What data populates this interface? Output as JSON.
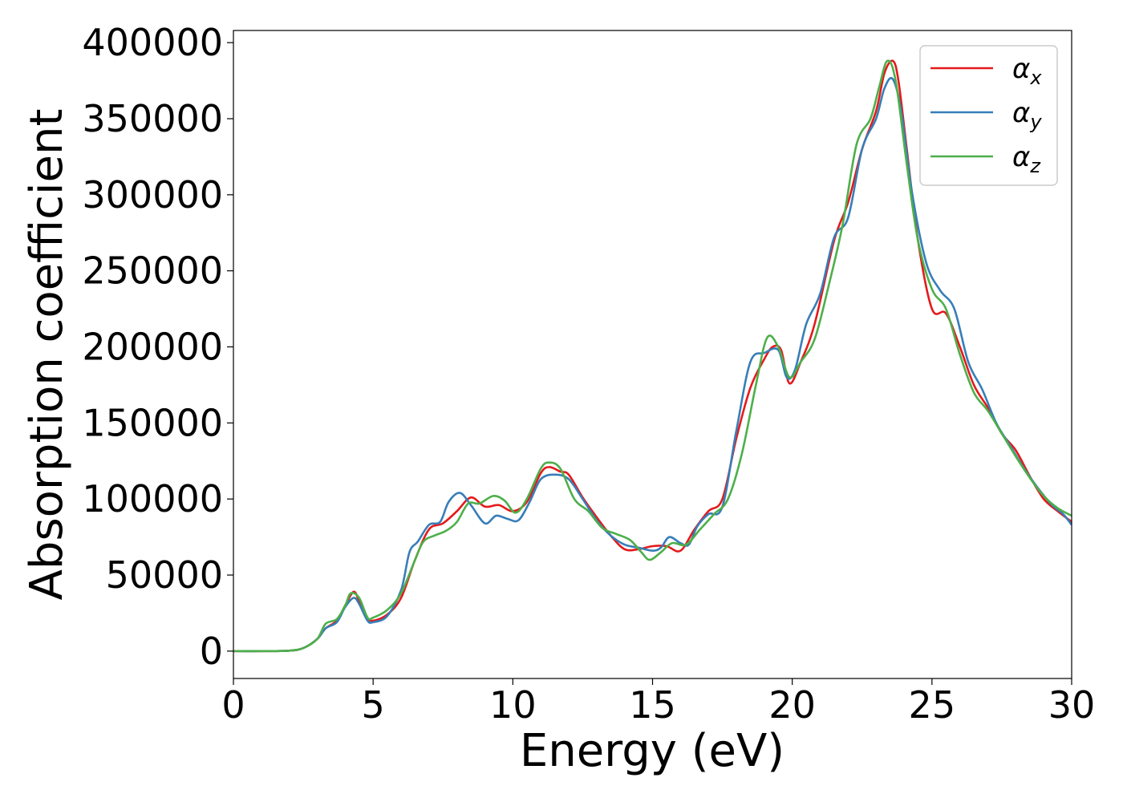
{
  "chart_data": {
    "type": "line",
    "xlabel": "Energy (eV)",
    "ylabel": "Absorption coefficient",
    "xlim": [
      0,
      30
    ],
    "ylim": [
      -18000,
      408000
    ],
    "xticks": [
      "0",
      "5",
      "10",
      "15",
      "20",
      "25",
      "30"
    ],
    "yticks": [
      "0",
      "50000",
      "100000",
      "150000",
      "200000",
      "250000",
      "300000",
      "350000",
      "400000"
    ],
    "grid": false,
    "legend_position": "top-right",
    "series": [
      {
        "name": "α",
        "subscript": "x",
        "color": "#e41a1c",
        "points": [
          [
            0,
            0
          ],
          [
            1,
            0
          ],
          [
            2,
            300
          ],
          [
            2.5,
            2000
          ],
          [
            3,
            8000
          ],
          [
            3.3,
            15000
          ],
          [
            3.7,
            20000
          ],
          [
            4.0,
            30000
          ],
          [
            4.3,
            39000
          ],
          [
            4.5,
            33000
          ],
          [
            4.8,
            22000
          ],
          [
            5.0,
            20000
          ],
          [
            5.5,
            24000
          ],
          [
            6.0,
            35000
          ],
          [
            6.5,
            60000
          ],
          [
            7.0,
            80000
          ],
          [
            7.5,
            84000
          ],
          [
            8.0,
            92000
          ],
          [
            8.5,
            101000
          ],
          [
            9.0,
            95000
          ],
          [
            9.5,
            96000
          ],
          [
            10.0,
            92000
          ],
          [
            10.5,
            98000
          ],
          [
            11.0,
            117000
          ],
          [
            11.3,
            121000
          ],
          [
            11.7,
            118000
          ],
          [
            12.0,
            116000
          ],
          [
            12.5,
            101000
          ],
          [
            13.0,
            88000
          ],
          [
            13.5,
            76000
          ],
          [
            14.0,
            67000
          ],
          [
            14.5,
            67000
          ],
          [
            15.0,
            69000
          ],
          [
            15.5,
            69000
          ],
          [
            16.0,
            66000
          ],
          [
            16.5,
            80000
          ],
          [
            17.0,
            92000
          ],
          [
            17.5,
            100000
          ],
          [
            18.0,
            140000
          ],
          [
            18.5,
            173000
          ],
          [
            19.0,
            192000
          ],
          [
            19.3,
            200000
          ],
          [
            19.6,
            198000
          ],
          [
            19.9,
            176000
          ],
          [
            20.3,
            190000
          ],
          [
            20.8,
            215000
          ],
          [
            21.5,
            270000
          ],
          [
            22.0,
            295000
          ],
          [
            22.5,
            330000
          ],
          [
            23.0,
            355000
          ],
          [
            23.3,
            380000
          ],
          [
            23.6,
            388000
          ],
          [
            23.8,
            375000
          ],
          [
            24.1,
            330000
          ],
          [
            24.5,
            270000
          ],
          [
            25.0,
            225000
          ],
          [
            25.5,
            222000
          ],
          [
            26.0,
            200000
          ],
          [
            26.5,
            175000
          ],
          [
            27.0,
            160000
          ],
          [
            27.5,
            143000
          ],
          [
            28.0,
            132000
          ],
          [
            28.5,
            115000
          ],
          [
            29.0,
            100000
          ],
          [
            29.5,
            92000
          ],
          [
            30.0,
            85000
          ]
        ]
      },
      {
        "name": "α",
        "subscript": "y",
        "color": "#377eb8",
        "points": [
          [
            0,
            0
          ],
          [
            1,
            0
          ],
          [
            2,
            300
          ],
          [
            2.5,
            2000
          ],
          [
            3,
            8000
          ],
          [
            3.3,
            15000
          ],
          [
            3.7,
            19000
          ],
          [
            4.0,
            29000
          ],
          [
            4.3,
            35000
          ],
          [
            4.5,
            31000
          ],
          [
            4.8,
            20000
          ],
          [
            5.0,
            19000
          ],
          [
            5.5,
            23000
          ],
          [
            6.0,
            40000
          ],
          [
            6.3,
            65000
          ],
          [
            6.6,
            72000
          ],
          [
            7.0,
            83000
          ],
          [
            7.4,
            85000
          ],
          [
            7.7,
            98000
          ],
          [
            8.1,
            104000
          ],
          [
            8.5,
            96000
          ],
          [
            9.0,
            84000
          ],
          [
            9.4,
            89000
          ],
          [
            9.8,
            87000
          ],
          [
            10.2,
            86000
          ],
          [
            10.6,
            98000
          ],
          [
            11.0,
            113000
          ],
          [
            11.5,
            116000
          ],
          [
            12.0,
            113000
          ],
          [
            12.5,
            100000
          ],
          [
            13.0,
            86000
          ],
          [
            13.5,
            76000
          ],
          [
            14.0,
            70000
          ],
          [
            14.5,
            68000
          ],
          [
            15.0,
            66000
          ],
          [
            15.3,
            68000
          ],
          [
            15.6,
            75000
          ],
          [
            16.0,
            71000
          ],
          [
            16.3,
            70000
          ],
          [
            16.6,
            82000
          ],
          [
            17.0,
            90000
          ],
          [
            17.5,
            95000
          ],
          [
            18.0,
            145000
          ],
          [
            18.5,
            190000
          ],
          [
            19.0,
            196000
          ],
          [
            19.5,
            198000
          ],
          [
            19.8,
            180000
          ],
          [
            20.1,
            185000
          ],
          [
            20.5,
            215000
          ],
          [
            21.0,
            235000
          ],
          [
            21.5,
            272000
          ],
          [
            22.0,
            285000
          ],
          [
            22.5,
            330000
          ],
          [
            23.0,
            350000
          ],
          [
            23.3,
            370000
          ],
          [
            23.6,
            376000
          ],
          [
            23.9,
            355000
          ],
          [
            24.3,
            300000
          ],
          [
            24.8,
            255000
          ],
          [
            25.3,
            237000
          ],
          [
            25.8,
            225000
          ],
          [
            26.3,
            190000
          ],
          [
            26.8,
            172000
          ],
          [
            27.3,
            150000
          ],
          [
            27.8,
            135000
          ],
          [
            28.3,
            120000
          ],
          [
            28.8,
            107000
          ],
          [
            29.3,
            96000
          ],
          [
            29.7,
            90000
          ],
          [
            30.0,
            83000
          ]
        ]
      },
      {
        "name": "α",
        "subscript": "z",
        "color": "#4daf4a",
        "points": [
          [
            0,
            0
          ],
          [
            1,
            0
          ],
          [
            2,
            300
          ],
          [
            2.5,
            2000
          ],
          [
            3,
            8000
          ],
          [
            3.3,
            18000
          ],
          [
            3.7,
            21000
          ],
          [
            4.0,
            30000
          ],
          [
            4.2,
            38000
          ],
          [
            4.5,
            35000
          ],
          [
            4.8,
            22000
          ],
          [
            5.0,
            22000
          ],
          [
            5.5,
            27000
          ],
          [
            6.0,
            38000
          ],
          [
            6.5,
            60000
          ],
          [
            6.8,
            72000
          ],
          [
            7.2,
            76000
          ],
          [
            7.6,
            79000
          ],
          [
            8.0,
            85000
          ],
          [
            8.4,
            97000
          ],
          [
            8.8,
            97000
          ],
          [
            9.3,
            102000
          ],
          [
            9.7,
            99000
          ],
          [
            10.1,
            91000
          ],
          [
            10.5,
            100000
          ],
          [
            11.0,
            120000
          ],
          [
            11.3,
            124000
          ],
          [
            11.7,
            120000
          ],
          [
            12.2,
            100000
          ],
          [
            12.7,
            92000
          ],
          [
            13.2,
            81000
          ],
          [
            13.7,
            77000
          ],
          [
            14.2,
            73000
          ],
          [
            14.6,
            65000
          ],
          [
            14.9,
            60000
          ],
          [
            15.3,
            65000
          ],
          [
            15.7,
            71000
          ],
          [
            16.2,
            70000
          ],
          [
            16.7,
            80000
          ],
          [
            17.2,
            90000
          ],
          [
            17.7,
            100000
          ],
          [
            18.2,
            130000
          ],
          [
            18.7,
            175000
          ],
          [
            19.1,
            206000
          ],
          [
            19.5,
            200000
          ],
          [
            19.9,
            180000
          ],
          [
            20.3,
            190000
          ],
          [
            20.8,
            205000
          ],
          [
            21.3,
            240000
          ],
          [
            21.8,
            280000
          ],
          [
            22.3,
            333000
          ],
          [
            22.8,
            350000
          ],
          [
            23.1,
            370000
          ],
          [
            23.4,
            388000
          ],
          [
            23.7,
            375000
          ],
          [
            24.1,
            320000
          ],
          [
            24.5,
            270000
          ],
          [
            25.0,
            238000
          ],
          [
            25.5,
            225000
          ],
          [
            26.0,
            195000
          ],
          [
            26.5,
            170000
          ],
          [
            27.0,
            158000
          ],
          [
            27.5,
            143000
          ],
          [
            28.0,
            128000
          ],
          [
            28.5,
            114000
          ],
          [
            29.0,
            102000
          ],
          [
            29.5,
            94000
          ],
          [
            30.0,
            89000
          ]
        ]
      }
    ]
  }
}
